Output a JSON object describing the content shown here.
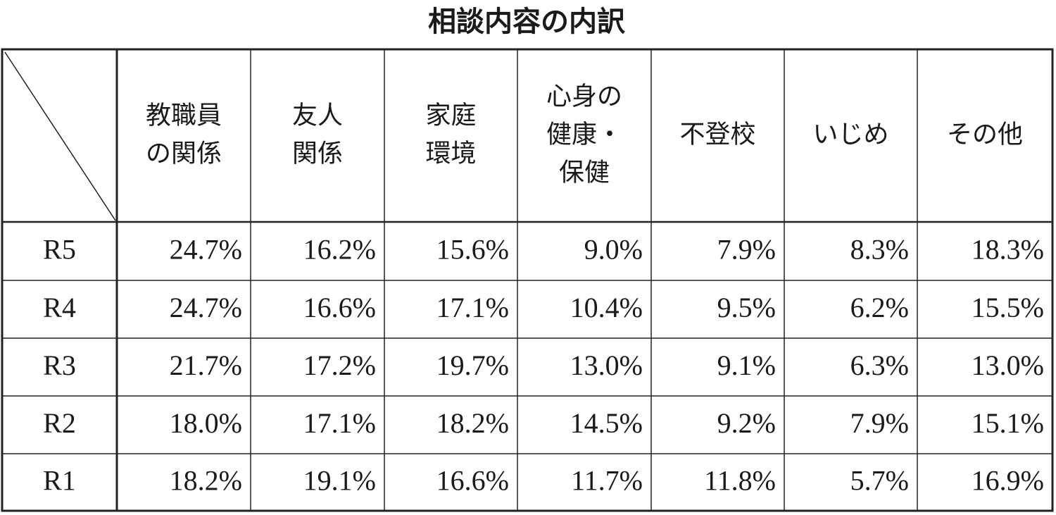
{
  "title": "相談内容の内訳",
  "table": {
    "header": [
      [
        "教職員",
        "の関係"
      ],
      [
        "友人",
        "関係"
      ],
      [
        "家庭",
        "環境"
      ],
      [
        "心身の",
        "健康・",
        "保健"
      ],
      [
        "不登校"
      ],
      [
        "いじめ"
      ],
      [
        "その他"
      ]
    ],
    "rows": [
      {
        "label": "R5",
        "cells": [
          "24.7%",
          "16.2%",
          "15.6%",
          "9.0%",
          "7.9%",
          "8.3%",
          "18.3%"
        ]
      },
      {
        "label": "R4",
        "cells": [
          "24.7%",
          "16.6%",
          "17.1%",
          "10.4%",
          "9.5%",
          "6.2%",
          "15.5%"
        ]
      },
      {
        "label": "R3",
        "cells": [
          "21.7%",
          "17.2%",
          "19.7%",
          "13.0%",
          "9.1%",
          "6.3%",
          "13.0%"
        ]
      },
      {
        "label": "R2",
        "cells": [
          "18.0%",
          "17.1%",
          "18.2%",
          "14.5%",
          "9.2%",
          "7.9%",
          "15.1%"
        ]
      },
      {
        "label": "R1",
        "cells": [
          "18.2%",
          "19.1%",
          "16.6%",
          "11.7%",
          "11.8%",
          "5.7%",
          "16.9%"
        ]
      }
    ]
  }
}
